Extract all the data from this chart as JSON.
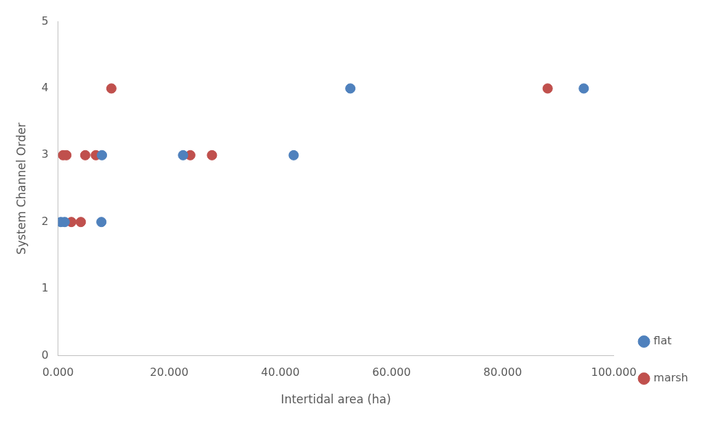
{
  "chart_data": {
    "type": "scatter",
    "xlabel": "Intertidal area (ha)",
    "ylabel": "System Channel Order",
    "series": [
      {
        "name": "flat",
        "color": "#4f81bd",
        "x": [
          0.5,
          1.2,
          7.8,
          7.9,
          22.5,
          42.4,
          52.6,
          94.6
        ],
        "values": [
          2,
          2,
          2,
          3,
          3,
          3,
          4,
          4
        ]
      },
      {
        "name": "marsh",
        "color": "#c0504d",
        "x": [
          0.9,
          1.5,
          2.4,
          4.1,
          4.9,
          6.8,
          9.6,
          23.8,
          27.7,
          88.1
        ],
        "values": [
          3,
          3,
          2,
          2,
          3,
          3,
          4,
          3,
          3,
          4
        ]
      }
    ],
    "xlim": [
      0,
      100
    ],
    "xticks": [
      {
        "value": 0,
        "label": "0.000"
      },
      {
        "value": 20,
        "label": "20.000"
      },
      {
        "value": 40,
        "label": "40.000"
      },
      {
        "value": 60,
        "label": "60.000"
      },
      {
        "value": 80,
        "label": "80.000"
      },
      {
        "value": 100,
        "label": "100.000"
      }
    ],
    "ylim": [
      0,
      5
    ],
    "yticks": [
      0,
      1,
      2,
      3,
      4,
      5
    ],
    "marker": "circle",
    "legend": "right",
    "grid": false
  }
}
